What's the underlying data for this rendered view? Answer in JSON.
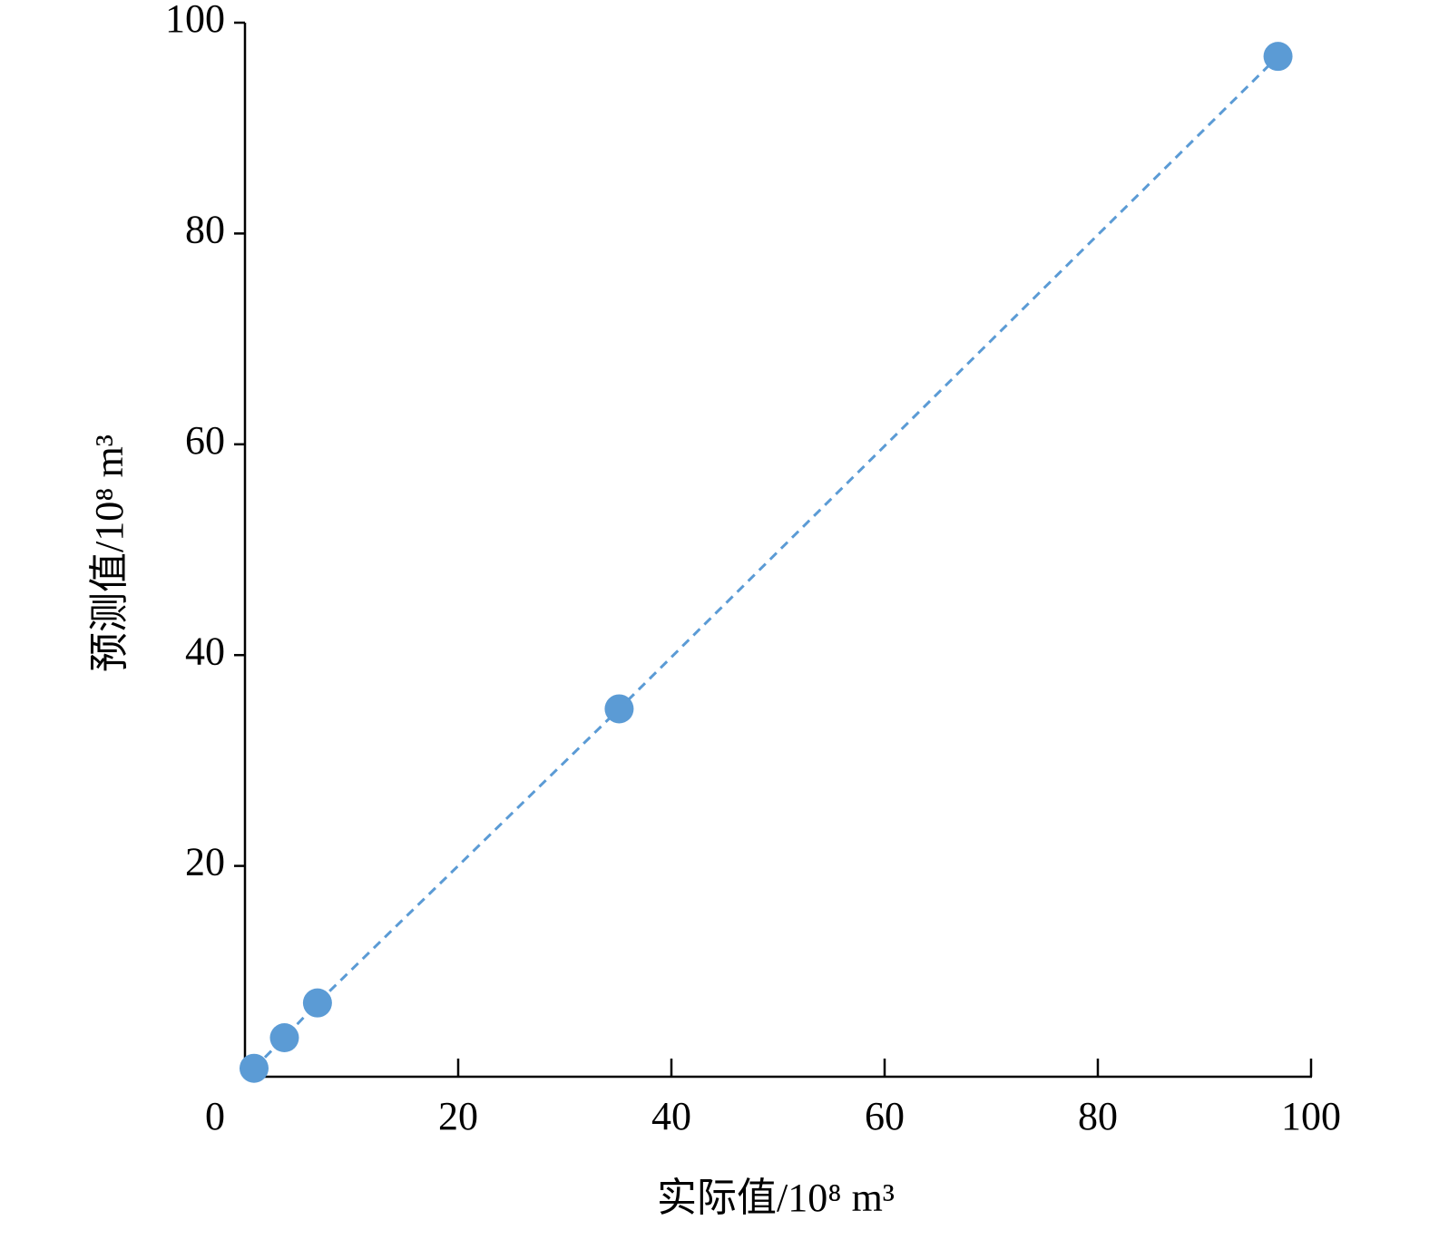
{
  "chart_data": {
    "type": "scatter",
    "x_label": "实际值/10⁸ m³",
    "y_label": "预测值/10⁸ m³",
    "x": [
      0.85,
      3.7,
      6.8,
      35.1,
      96.9
    ],
    "values": [
      0.8,
      3.7,
      7.0,
      34.9,
      96.8
    ],
    "color": "#5b9bd5",
    "line": true,
    "line_style": "dashed",
    "xlim": [
      0,
      100
    ],
    "xticks": [
      0,
      20,
      40,
      60,
      80,
      100
    ],
    "ylim": [
      0,
      100
    ],
    "yticks": [
      20,
      40,
      60,
      80,
      100
    ],
    "grid": false
  }
}
